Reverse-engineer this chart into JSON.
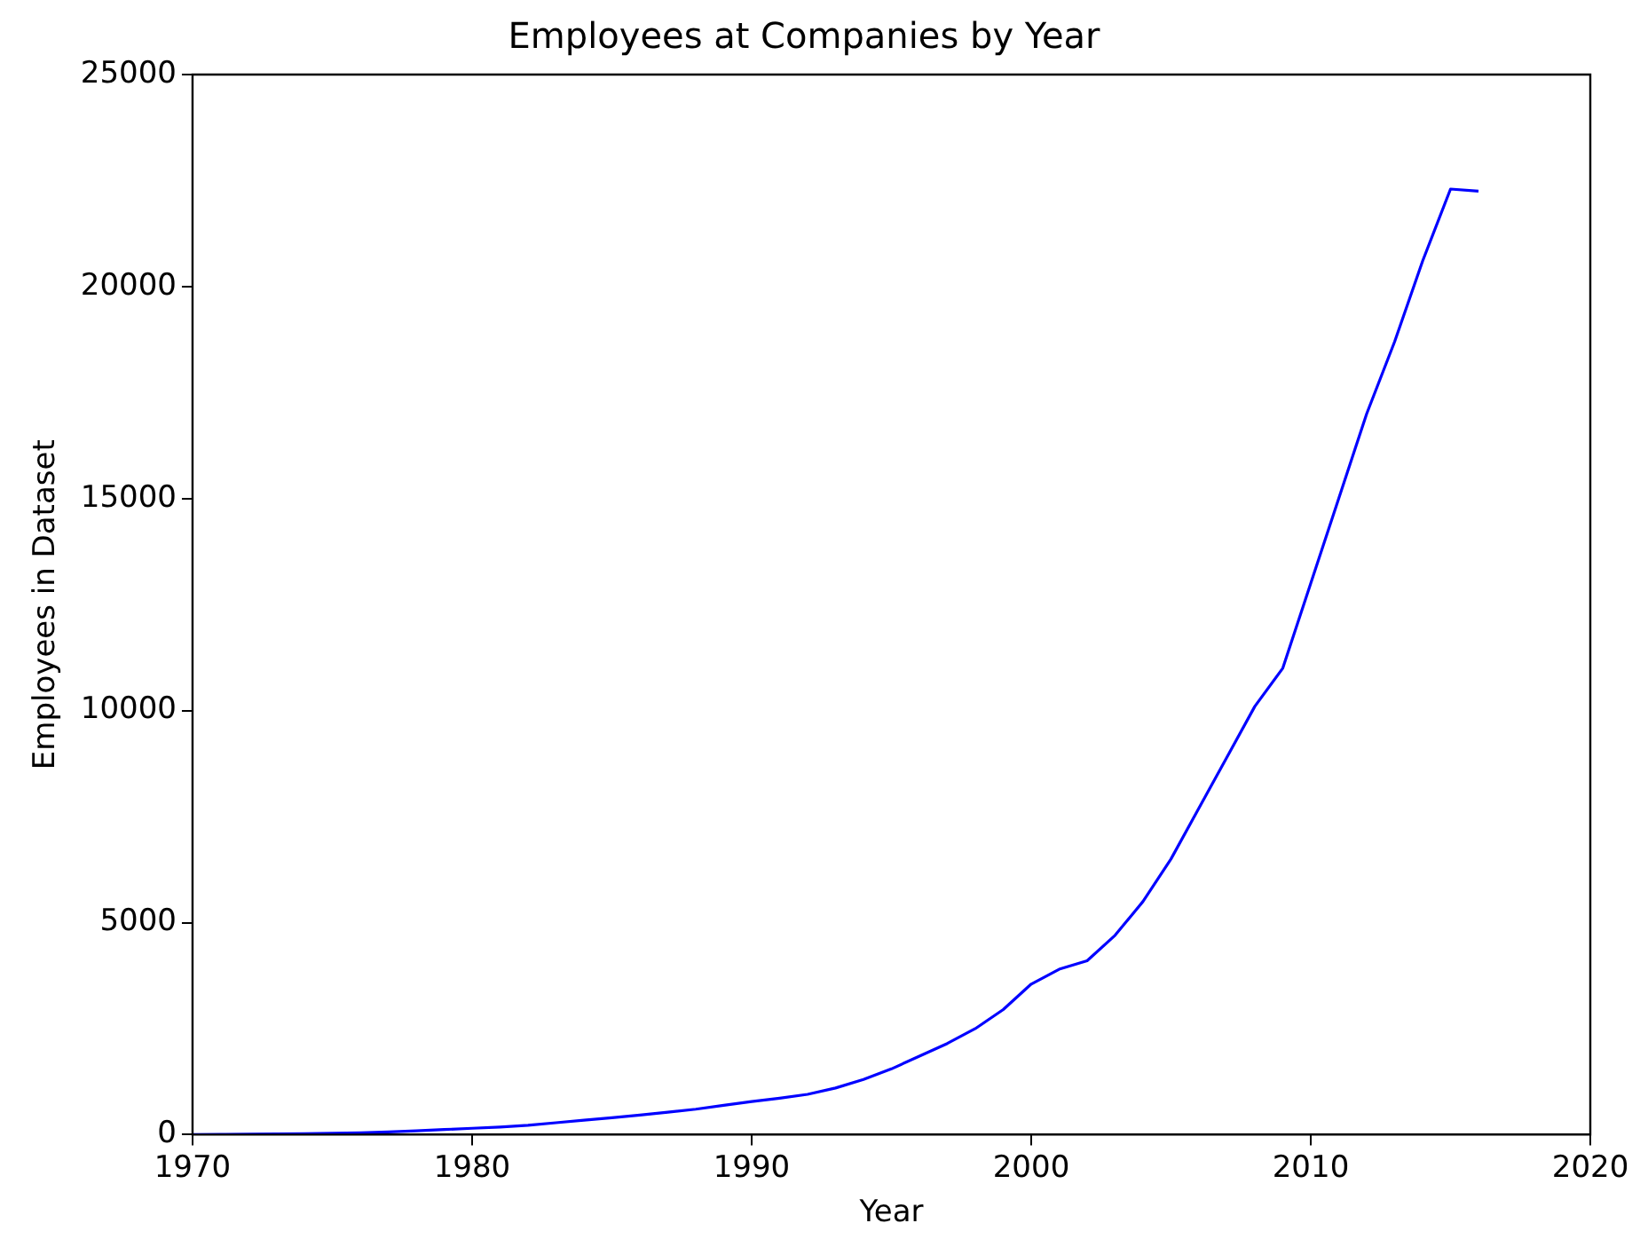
{
  "chart_data": {
    "type": "line",
    "title": "Employees at Companies by Year",
    "xlabel": "Year",
    "ylabel": "Employees in Dataset",
    "x": [
      1970,
      1971,
      1972,
      1973,
      1974,
      1975,
      1976,
      1977,
      1978,
      1979,
      1980,
      1981,
      1982,
      1983,
      1984,
      1985,
      1986,
      1987,
      1988,
      1989,
      1990,
      1991,
      1992,
      1993,
      1994,
      1995,
      1996,
      1997,
      1998,
      1999,
      2000,
      2001,
      2002,
      2003,
      2004,
      2005,
      2006,
      2007,
      2008,
      2009,
      2010,
      2011,
      2012,
      2013,
      2014,
      2015,
      2016
    ],
    "series": [
      {
        "color": "#0000ff",
        "values": [
          0,
          5,
          10,
          15,
          20,
          30,
          45,
          65,
          90,
          120,
          150,
          180,
          220,
          280,
          340,
          400,
          460,
          530,
          600,
          690,
          780,
          860,
          950,
          1100,
          1300,
          1550,
          1850,
          2150,
          2500,
          2950,
          3550,
          3900,
          4100,
          4700,
          5500,
          6500,
          7700,
          8900,
          10100,
          11000,
          13000,
          15000,
          17000,
          18700,
          20600,
          22300,
          22250
        ]
      }
    ],
    "xlim": [
      1970,
      2020
    ],
    "xticks": [
      1970,
      1980,
      1990,
      2000,
      2010,
      2020
    ],
    "ylim": [
      0,
      25000
    ],
    "yticks": [
      0,
      5000,
      10000,
      15000,
      20000,
      25000
    ],
    "grid": false,
    "legend": false,
    "marker": "none",
    "line_style": "solid"
  }
}
